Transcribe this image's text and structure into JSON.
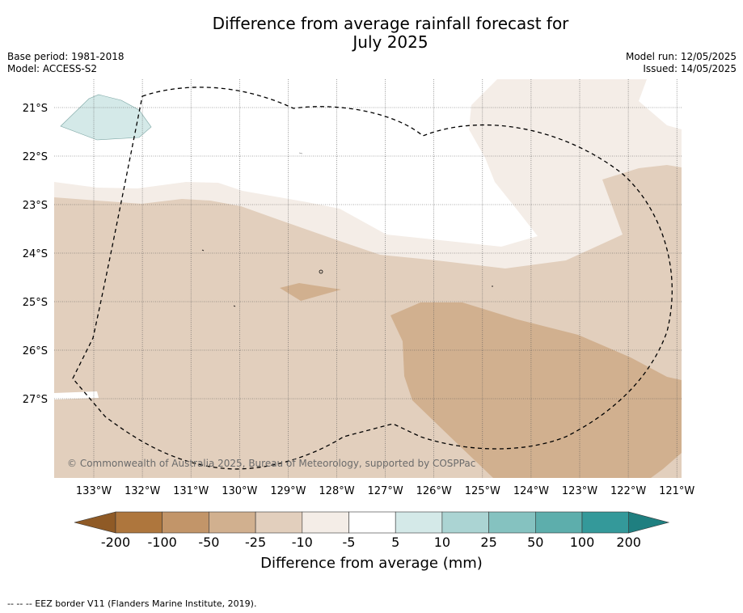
{
  "title_line1": "Difference from average rainfall forecast for",
  "title_line2": "July 2025",
  "base_period": "Base period: 1981-2018",
  "model": "Model: ACCESS-S2",
  "model_run": "Model run: 12/05/2025",
  "issued": "Issued: 14/05/2025",
  "copyright": "© Commonwealth of Australia 2025, Bureau of Meteorology, supported by COSPPac",
  "lat_labels": [
    "21°S",
    "22°S",
    "23°S",
    "24°S",
    "25°S",
    "26°S",
    "27°S"
  ],
  "lon_labels": [
    "133°W",
    "132°W",
    "131°W",
    "130°W",
    "129°W",
    "128°W",
    "127°W",
    "126°W",
    "125°W",
    "124°W",
    "123°W",
    "122°W",
    "121°W"
  ],
  "colorbar": {
    "label": "Difference from average (mm)",
    "ticks": [
      "-200",
      "-100",
      "-50",
      "-25",
      "-10",
      "-5",
      "5",
      "10",
      "25",
      "50",
      "100",
      "200"
    ],
    "colors": {
      "below_min": "#8f5a26",
      "bins": [
        "#ae763d",
        "#c29569",
        "#d1b08f",
        "#e2cfbd",
        "#f4ede7",
        "#ffffff",
        "#d4e9e8",
        "#abd4d3",
        "#85c2c0",
        "#5daeac",
        "#34999a"
      ],
      "above_max": "#1f7f80"
    }
  },
  "footnote": "-- -- -- EEZ border V11 (Flanders Marine Institute, 2019)."
}
